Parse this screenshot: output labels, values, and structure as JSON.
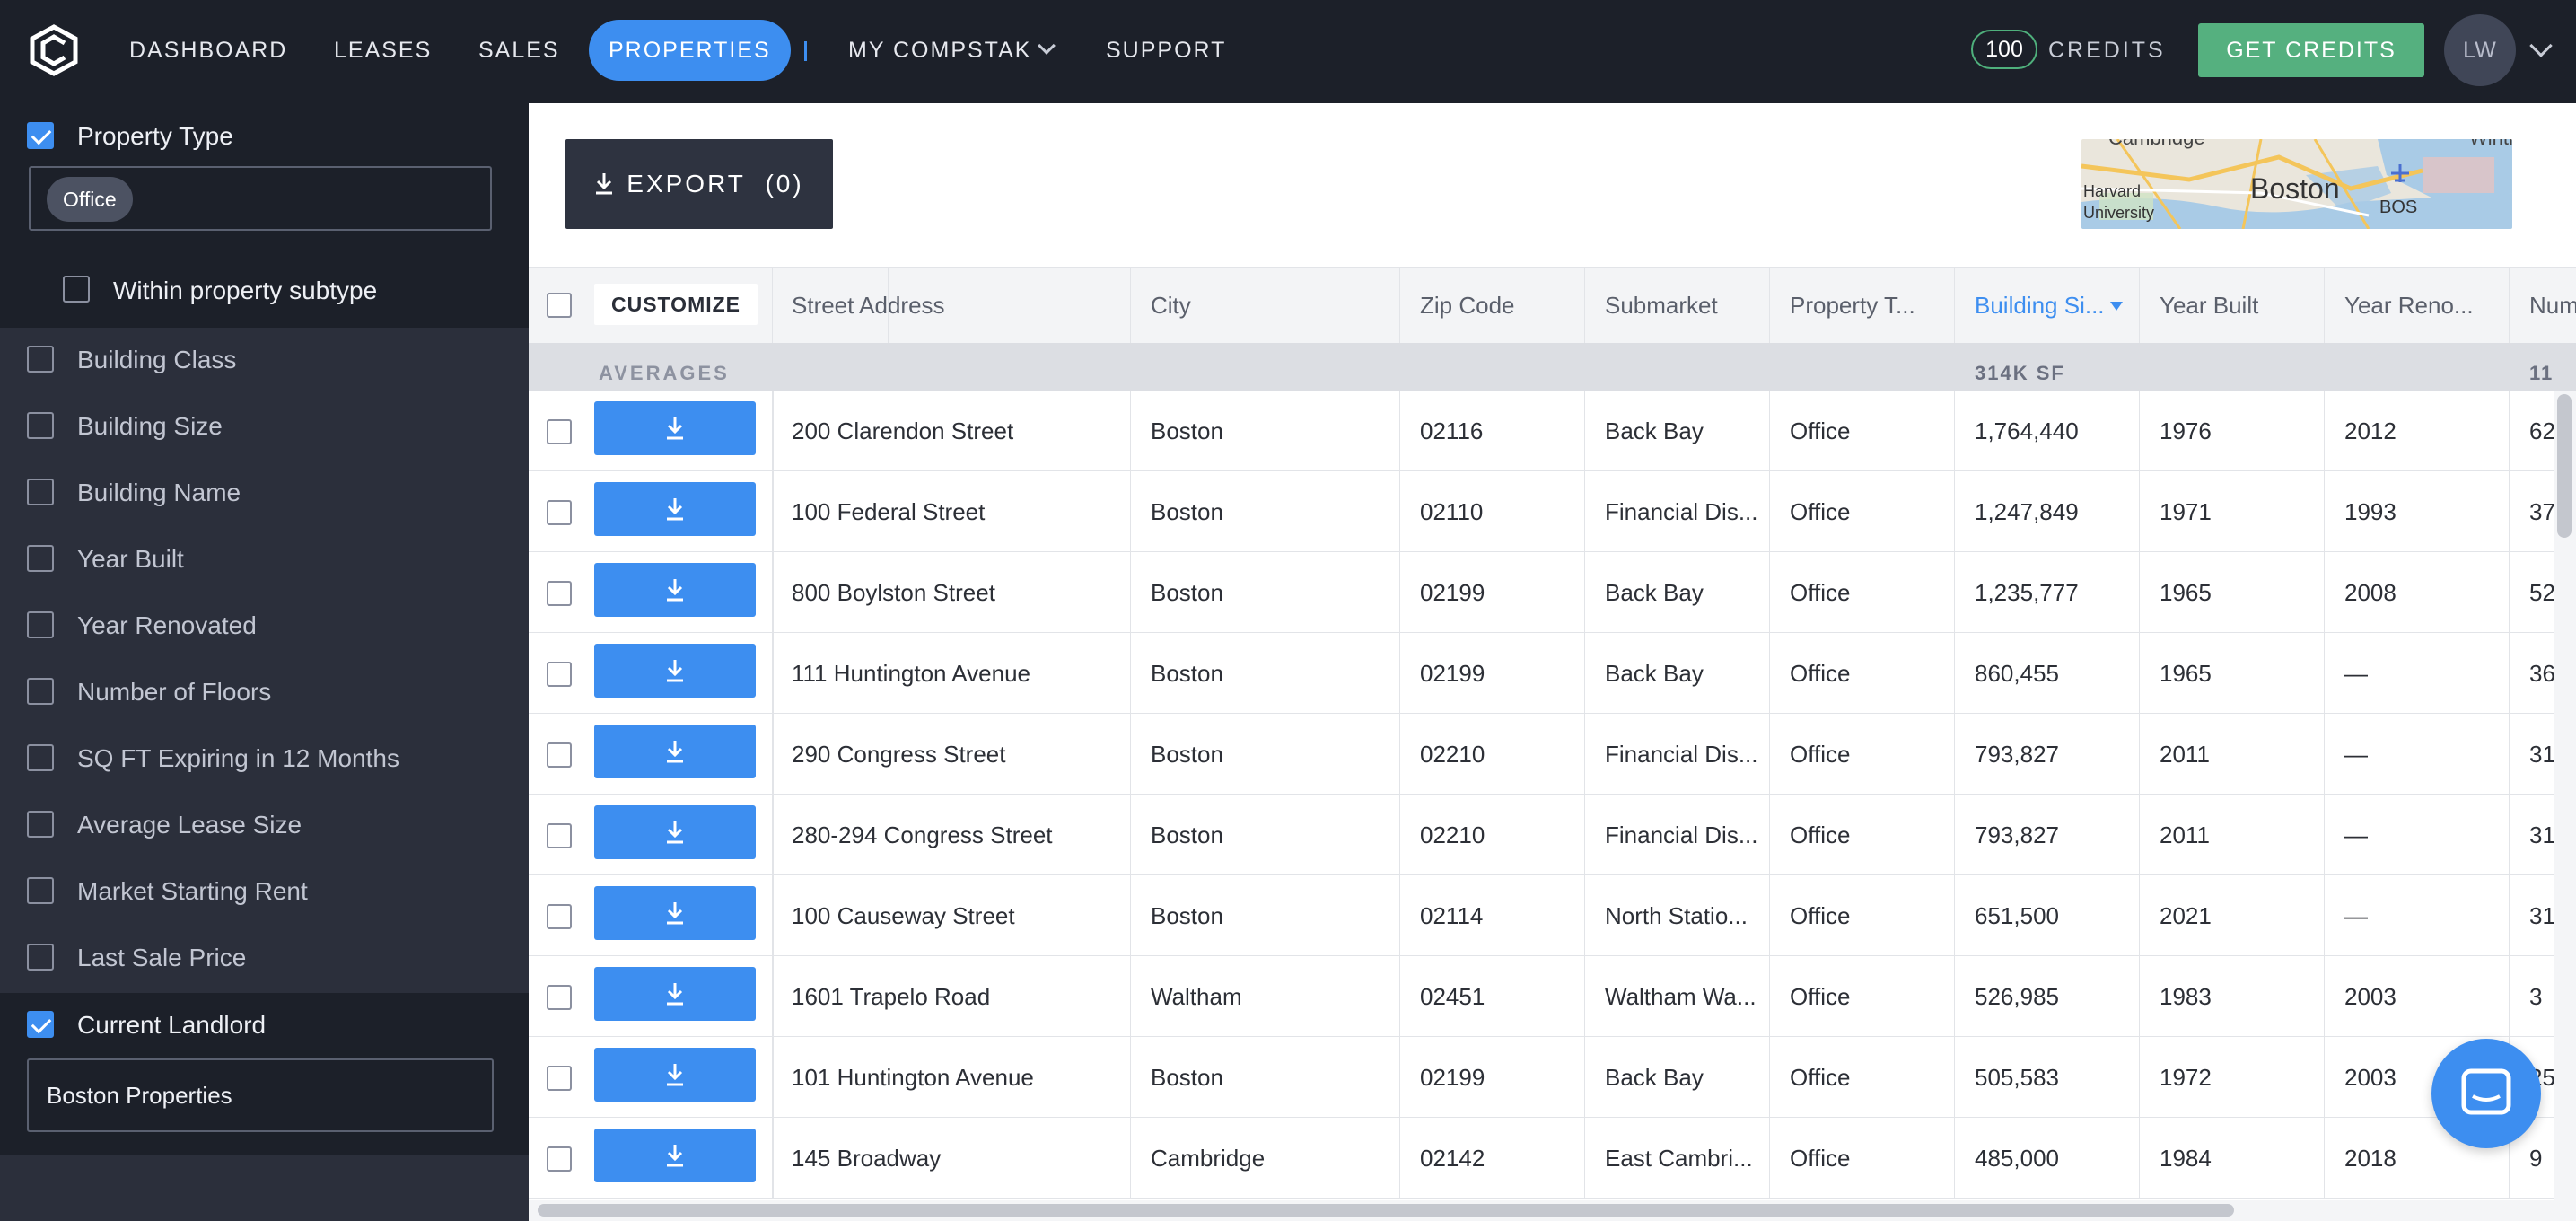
{
  "nav": {
    "items": [
      {
        "label": "DASHBOARD"
      },
      {
        "label": "LEASES"
      },
      {
        "label": "SALES"
      },
      {
        "label": "PROPERTIES"
      },
      {
        "label": "MY COMPSTAK"
      },
      {
        "label": "SUPPORT"
      }
    ],
    "active": "PROPERTIES",
    "credits_count": "100",
    "credits_label": "CREDITS",
    "get_credits": "GET CREDITS",
    "avatar_initials": "LW"
  },
  "sidebar": {
    "property_type": {
      "label": "Property Type",
      "checked": true,
      "chip": "Office"
    },
    "within_subtype": {
      "label": "Within property subtype",
      "checked": false
    },
    "filters": [
      {
        "label": "Building Class"
      },
      {
        "label": "Building Size"
      },
      {
        "label": "Building Name"
      },
      {
        "label": "Year Built"
      },
      {
        "label": "Year Renovated"
      },
      {
        "label": "Number of Floors"
      },
      {
        "label": "SQ FT Expiring in 12 Months"
      },
      {
        "label": "Average Lease Size"
      },
      {
        "label": "Market Starting Rent"
      },
      {
        "label": "Last Sale Price"
      }
    ],
    "current_landlord": {
      "label": "Current Landlord",
      "checked": true,
      "value": "Boston Properties"
    }
  },
  "toolbar": {
    "export_label": "EXPORT",
    "export_count": "(0)"
  },
  "map": {
    "labels": [
      "Cambridge",
      "Winth",
      "Harvard",
      "University",
      "Boston",
      "BOS"
    ]
  },
  "table": {
    "customize_label": "CUSTOMIZE",
    "columns": [
      "Street Address",
      "City",
      "Zip Code",
      "Submarket",
      "Property T...",
      "Building Si...",
      "Year Built",
      "Year Reno...",
      "Num"
    ],
    "sorted_column": "Building Si...",
    "averages": {
      "label": "AVERAGES",
      "building_size": "314K SF",
      "floors": "11"
    },
    "rows": [
      {
        "address": "200 Clarendon Street",
        "city": "Boston",
        "zip": "02116",
        "submarket": "Back Bay",
        "type": "Office",
        "size": "1,764,440",
        "built": "1976",
        "renovated": "2012",
        "floors": "62"
      },
      {
        "address": "100 Federal Street",
        "city": "Boston",
        "zip": "02110",
        "submarket": "Financial Dis...",
        "type": "Office",
        "size": "1,247,849",
        "built": "1971",
        "renovated": "1993",
        "floors": "37"
      },
      {
        "address": "800 Boylston Street",
        "city": "Boston",
        "zip": "02199",
        "submarket": "Back Bay",
        "type": "Office",
        "size": "1,235,777",
        "built": "1965",
        "renovated": "2008",
        "floors": "52"
      },
      {
        "address": "111 Huntington Avenue",
        "city": "Boston",
        "zip": "02199",
        "submarket": "Back Bay",
        "type": "Office",
        "size": "860,455",
        "built": "1965",
        "renovated": "—",
        "floors": "36"
      },
      {
        "address": "290 Congress Street",
        "city": "Boston",
        "zip": "02210",
        "submarket": "Financial Dis...",
        "type": "Office",
        "size": "793,827",
        "built": "2011",
        "renovated": "—",
        "floors": "31"
      },
      {
        "address": "280-294 Congress Street",
        "city": "Boston",
        "zip": "02210",
        "submarket": "Financial Dis...",
        "type": "Office",
        "size": "793,827",
        "built": "2011",
        "renovated": "—",
        "floors": "31"
      },
      {
        "address": "100 Causeway Street",
        "city": "Boston",
        "zip": "02114",
        "submarket": "North Statio...",
        "type": "Office",
        "size": "651,500",
        "built": "2021",
        "renovated": "—",
        "floors": "31"
      },
      {
        "address": "1601 Trapelo Road",
        "city": "Waltham",
        "zip": "02451",
        "submarket": "Waltham Wa...",
        "type": "Office",
        "size": "526,985",
        "built": "1983",
        "renovated": "2003",
        "floors": "3"
      },
      {
        "address": "101 Huntington Avenue",
        "city": "Boston",
        "zip": "02199",
        "submarket": "Back Bay",
        "type": "Office",
        "size": "505,583",
        "built": "1972",
        "renovated": "2003",
        "floors": "25"
      },
      {
        "address": "145 Broadway",
        "city": "Cambridge",
        "zip": "02142",
        "submarket": "East Cambri...",
        "type": "Office",
        "size": "485,000",
        "built": "1984",
        "renovated": "2018",
        "floors": "9"
      }
    ]
  },
  "colors": {
    "accent": "#3d8ef0",
    "nav_bg": "#1c2029",
    "sidebar_bg": "#2b2f3b",
    "success": "#55b07f"
  }
}
